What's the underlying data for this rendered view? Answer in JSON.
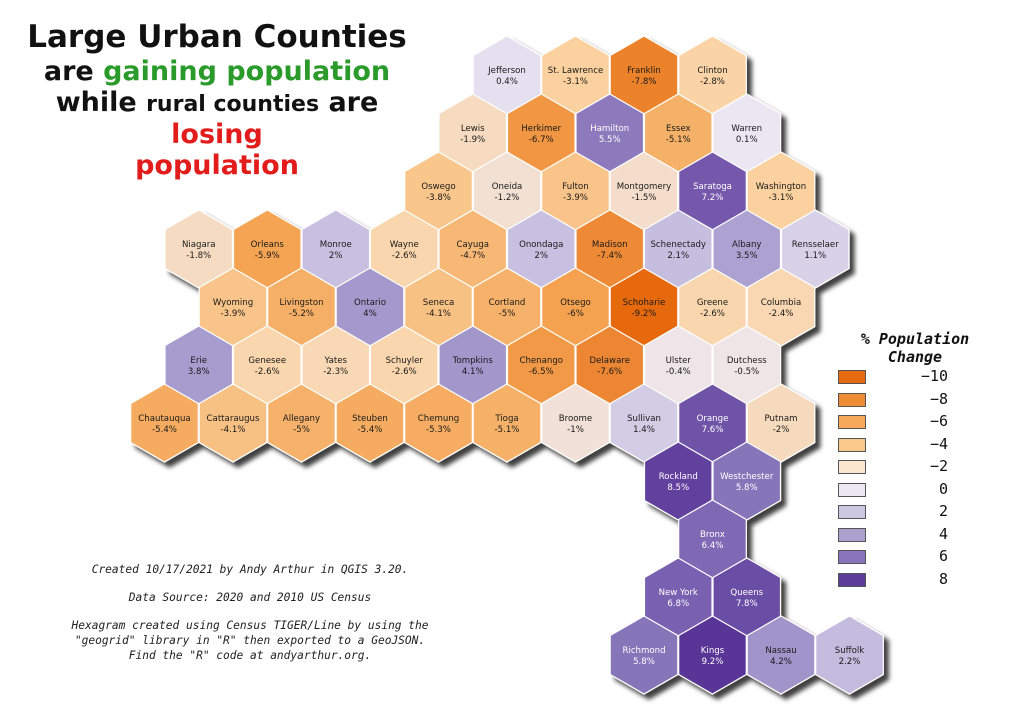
{
  "title": {
    "line1": "Large Urban Counties",
    "line2_a": "are ",
    "line2_b": "gaining population",
    "line3_a": "while ",
    "line3_b": "rural counties",
    "line3_c": " are ",
    "line3_d": "losing",
    "line4": "population"
  },
  "colors": {
    "green": "#2a9a2a",
    "red": "#e21b1b",
    "hex_border": "#ffffff"
  },
  "credits": {
    "created": "Created 10/17/2021 by Andy Arthur in QGIS 3.20.",
    "source": "Data Source: 2020 and 2010 US Census",
    "method": "Hexagram created using Census TIGER/Line by using the \"geogrid\"  library in \"R\" then exported to a GeoJSON. Find the \"R\" code at andyarthur.org."
  },
  "legend": {
    "title_line1": "% Population",
    "title_line2": "Change",
    "entries": [
      {
        "label": "-10",
        "color": "#e66a10"
      },
      {
        "label": "-8",
        "color": "#ef8c36"
      },
      {
        "label": "-6",
        "color": "#f6a95a"
      },
      {
        "label": "-4",
        "color": "#fbc98b"
      },
      {
        "label": "-2",
        "color": "#fbe7cf"
      },
      {
        "label": "0",
        "color": "#ece8f3"
      },
      {
        "label": "2",
        "color": "#cdc8e2"
      },
      {
        "label": "4",
        "color": "#aba1cf"
      },
      {
        "label": "6",
        "color": "#8875bb"
      },
      {
        "label": "8",
        "color": "#5e3d9a"
      }
    ]
  },
  "counties": [
    {
      "name": "Jefferson",
      "value": "0.4%",
      "change": 0.4,
      "col": 0,
      "row": 0
    },
    {
      "name": "St. Lawrence",
      "value": "-3.1%",
      "change": -3.1,
      "col": 1,
      "row": 0
    },
    {
      "name": "Franklin",
      "value": "-7.8%",
      "change": -7.8,
      "col": 2,
      "row": 0
    },
    {
      "name": "Clinton",
      "value": "-2.8%",
      "change": -2.8,
      "col": 3,
      "row": 0
    },
    {
      "name": "Lewis",
      "value": "-1.9%",
      "change": -1.9,
      "col": -0.5,
      "row": 1
    },
    {
      "name": "Herkimer",
      "value": "-6.7%",
      "change": -6.7,
      "col": 0.5,
      "row": 1
    },
    {
      "name": "Hamilton",
      "value": "5.5%",
      "change": 5.5,
      "col": 1.5,
      "row": 1
    },
    {
      "name": "Essex",
      "value": "-5.1%",
      "change": -5.1,
      "col": 2.5,
      "row": 1
    },
    {
      "name": "Warren",
      "value": "0.1%",
      "change": 0.1,
      "col": 3.5,
      "row": 1
    },
    {
      "name": "Oswego",
      "value": "-3.8%",
      "change": -3.8,
      "col": -1,
      "row": 2
    },
    {
      "name": "Oneida",
      "value": "-1.2%",
      "change": -1.2,
      "col": 0,
      "row": 2
    },
    {
      "name": "Fulton",
      "value": "-3.9%",
      "change": -3.9,
      "col": 1,
      "row": 2
    },
    {
      "name": "Montgomery",
      "value": "-1.5%",
      "change": -1.5,
      "col": 2,
      "row": 2
    },
    {
      "name": "Saratoga",
      "value": "7.2%",
      "change": 7.2,
      "col": 3,
      "row": 2
    },
    {
      "name": "Washington",
      "value": "-3.1%",
      "change": -3.1,
      "col": 4,
      "row": 2
    },
    {
      "name": "Niagara",
      "value": "-1.8%",
      "change": -1.8,
      "col": -4.5,
      "row": 3
    },
    {
      "name": "Orleans",
      "value": "-5.9%",
      "change": -5.9,
      "col": -3.5,
      "row": 3
    },
    {
      "name": "Monroe",
      "value": "2%",
      "change": 2,
      "col": -2.5,
      "row": 3
    },
    {
      "name": "Wayne",
      "value": "-2.6%",
      "change": -2.6,
      "col": -1.5,
      "row": 3
    },
    {
      "name": "Cayuga",
      "value": "-4.7%",
      "change": -4.7,
      "col": -0.5,
      "row": 3
    },
    {
      "name": "Onondaga",
      "value": "2%",
      "change": 2,
      "col": 0.5,
      "row": 3
    },
    {
      "name": "Madison",
      "value": "-7.4%",
      "change": -7.4,
      "col": 1.5,
      "row": 3
    },
    {
      "name": "Schenectady",
      "value": "2.1%",
      "change": 2.1,
      "col": 2.5,
      "row": 3
    },
    {
      "name": "Albany",
      "value": "3.5%",
      "change": 3.5,
      "col": 3.5,
      "row": 3
    },
    {
      "name": "Rensselaer",
      "value": "1.1%",
      "change": 1.1,
      "col": 4.5,
      "row": 3
    },
    {
      "name": "Wyoming",
      "value": "-3.9%",
      "change": -3.9,
      "col": -4,
      "row": 4
    },
    {
      "name": "Livingston",
      "value": "-5.2%",
      "change": -5.2,
      "col": -3,
      "row": 4
    },
    {
      "name": "Ontario",
      "value": "4%",
      "change": 4,
      "col": -2,
      "row": 4
    },
    {
      "name": "Seneca",
      "value": "-4.1%",
      "change": -4.1,
      "col": -1,
      "row": 4
    },
    {
      "name": "Cortland",
      "value": "-5%",
      "change": -5,
      "col": 0,
      "row": 4
    },
    {
      "name": "Otsego",
      "value": "-6%",
      "change": -6,
      "col": 1,
      "row": 4
    },
    {
      "name": "Schoharie",
      "value": "-9.2%",
      "change": -9.2,
      "col": 2,
      "row": 4
    },
    {
      "name": "Greene",
      "value": "-2.6%",
      "change": -2.6,
      "col": 3,
      "row": 4
    },
    {
      "name": "Columbia",
      "value": "-2.4%",
      "change": -2.4,
      "col": 4,
      "row": 4
    },
    {
      "name": "Erie",
      "value": "3.8%",
      "change": 3.8,
      "col": -4.5,
      "row": 5
    },
    {
      "name": "Genesee",
      "value": "-2.6%",
      "change": -2.6,
      "col": -3.5,
      "row": 5
    },
    {
      "name": "Yates",
      "value": "-2.3%",
      "change": -2.3,
      "col": -2.5,
      "row": 5
    },
    {
      "name": "Schuyler",
      "value": "-2.6%",
      "change": -2.6,
      "col": -1.5,
      "row": 5
    },
    {
      "name": "Tompkins",
      "value": "4.1%",
      "change": 4.1,
      "col": -0.5,
      "row": 5
    },
    {
      "name": "Chenango",
      "value": "-6.5%",
      "change": -6.5,
      "col": 0.5,
      "row": 5
    },
    {
      "name": "Delaware",
      "value": "-7.6%",
      "change": -7.6,
      "col": 1.5,
      "row": 5
    },
    {
      "name": "Ulster",
      "value": "-0.4%",
      "change": -0.4,
      "col": 2.5,
      "row": 5
    },
    {
      "name": "Dutchess",
      "value": "-0.5%",
      "change": -0.5,
      "col": 3.5,
      "row": 5
    },
    {
      "name": "Chautauqua",
      "value": "-5.4%",
      "change": -5.4,
      "col": -5,
      "row": 6
    },
    {
      "name": "Cattaraugus",
      "value": "-4.1%",
      "change": -4.1,
      "col": -4,
      "row": 6
    },
    {
      "name": "Allegany",
      "value": "-5%",
      "change": -5,
      "col": -3,
      "row": 6
    },
    {
      "name": "Steuben",
      "value": "-5.4%",
      "change": -5.4,
      "col": -2,
      "row": 6
    },
    {
      "name": "Chemung",
      "value": "-5.3%",
      "change": -5.3,
      "col": -1,
      "row": 6
    },
    {
      "name": "Tioga",
      "value": "-5.1%",
      "change": -5.1,
      "col": 0,
      "row": 6
    },
    {
      "name": "Broome",
      "value": "-1%",
      "change": -1,
      "col": 1,
      "row": 6
    },
    {
      "name": "Sullivan",
      "value": "1.4%",
      "change": 1.4,
      "col": 2,
      "row": 6
    },
    {
      "name": "Orange",
      "value": "7.6%",
      "change": 7.6,
      "col": 3,
      "row": 6
    },
    {
      "name": "Putnam",
      "value": "-2%",
      "change": -2,
      "col": 4,
      "row": 6
    },
    {
      "name": "Rockland",
      "value": "8.5%",
      "change": 8.5,
      "col": 2.5,
      "row": 7
    },
    {
      "name": "Westchester",
      "value": "5.8%",
      "change": 5.8,
      "col": 3.5,
      "row": 7
    },
    {
      "name": "Bronx",
      "value": "6.4%",
      "change": 6.4,
      "col": 3,
      "row": 8
    },
    {
      "name": "New York",
      "value": "6.8%",
      "change": 6.8,
      "col": 2.5,
      "row": 9
    },
    {
      "name": "Queens",
      "value": "7.8%",
      "change": 7.8,
      "col": 3.5,
      "row": 9
    },
    {
      "name": "Richmond",
      "value": "5.8%",
      "change": 5.8,
      "col": 2,
      "row": 10
    },
    {
      "name": "Kings",
      "value": "9.2%",
      "change": 9.2,
      "col": 3,
      "row": 10
    },
    {
      "name": "Nassau",
      "value": "4.2%",
      "change": 4.2,
      "col": 4,
      "row": 10
    },
    {
      "name": "Suffolk",
      "value": "2.2%",
      "change": 2.2,
      "col": 5,
      "row": 10
    }
  ]
}
